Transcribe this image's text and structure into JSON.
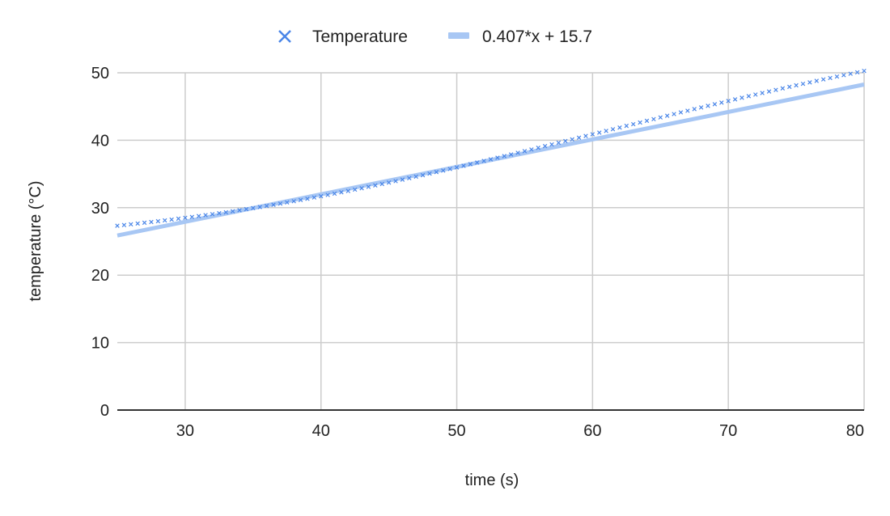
{
  "colors": {
    "marker": "#4a86e8",
    "trendline": "#a8c7f4",
    "grid": "#cccccc",
    "axis": "#333333",
    "text": "#222222"
  },
  "chart_data": {
    "type": "scatter",
    "xlabel": "time (s)",
    "ylabel": "temperature (°C)",
    "xlim": [
      25,
      80
    ],
    "ylim": [
      0,
      50
    ],
    "x_ticks": [
      30,
      40,
      50,
      60,
      70,
      80
    ],
    "y_ticks": [
      0,
      10,
      20,
      30,
      40,
      50
    ],
    "grid": true,
    "legend": {
      "position": "top",
      "entries": [
        {
          "label": "Temperature",
          "marker": "x-icon"
        },
        {
          "label": "0.407*x + 15.7",
          "marker": "line-swatch-icon"
        }
      ]
    },
    "series": [
      {
        "name": "Temperature",
        "kind": "scatter",
        "marker": "x",
        "x": [
          25.0,
          25.5,
          26.0,
          26.5,
          27.0,
          27.5,
          28.0,
          28.5,
          29.0,
          29.5,
          30.0,
          30.5,
          31.0,
          31.5,
          32.0,
          32.5,
          33.0,
          33.5,
          34.0,
          34.5,
          35.0,
          35.5,
          36.0,
          36.5,
          37.0,
          37.5,
          38.0,
          38.5,
          39.0,
          39.5,
          40.0,
          40.5,
          41.0,
          41.5,
          42.0,
          42.5,
          43.0,
          43.5,
          44.0,
          44.5,
          45.0,
          45.5,
          46.0,
          46.5,
          47.0,
          47.5,
          48.0,
          48.5,
          49.0,
          49.5,
          50.0,
          50.5,
          51.0,
          51.5,
          52.0,
          52.5,
          53.0,
          53.5,
          54.0,
          54.5,
          55.0,
          55.5,
          56.0,
          56.5,
          57.0,
          57.5,
          58.0,
          58.5,
          59.0,
          59.5,
          60.0,
          60.5,
          61.0,
          61.5,
          62.0,
          62.5,
          63.0,
          63.5,
          64.0,
          64.5,
          65.0,
          65.5,
          66.0,
          66.5,
          67.0,
          67.5,
          68.0,
          68.5,
          69.0,
          69.5,
          70.0,
          70.5,
          71.0,
          71.5,
          72.0,
          72.5,
          73.0,
          73.5,
          74.0,
          74.5,
          75.0,
          75.5,
          76.0,
          76.5,
          77.0,
          77.5,
          78.0,
          78.5,
          79.0,
          79.5,
          80.0
        ],
        "y": [
          27.32,
          27.43,
          27.54,
          27.65,
          27.77,
          27.88,
          28.0,
          28.12,
          28.24,
          28.37,
          28.5,
          28.63,
          28.76,
          28.9,
          29.04,
          29.18,
          29.32,
          29.47,
          29.62,
          29.78,
          29.94,
          30.1,
          30.26,
          30.43,
          30.6,
          30.78,
          30.96,
          31.14,
          31.32,
          31.51,
          31.7,
          31.89,
          32.08,
          32.28,
          32.48,
          32.68,
          32.88,
          33.09,
          33.3,
          33.51,
          33.72,
          33.94,
          34.16,
          34.38,
          34.6,
          34.82,
          35.05,
          35.28,
          35.51,
          35.74,
          35.97,
          36.21,
          36.45,
          36.69,
          36.93,
          37.17,
          37.41,
          37.65,
          37.89,
          38.14,
          38.38,
          38.63,
          38.88,
          39.13,
          39.38,
          39.63,
          39.88,
          40.13,
          40.38,
          40.63,
          40.88,
          41.13,
          41.38,
          41.63,
          41.88,
          42.13,
          42.38,
          42.63,
          42.88,
          43.13,
          43.38,
          43.63,
          43.88,
          44.13,
          44.37,
          44.62,
          44.86,
          45.1,
          45.34,
          45.58,
          45.82,
          46.06,
          46.3,
          46.54,
          46.77,
          47.0,
          47.23,
          47.46,
          47.69,
          47.92,
          48.14,
          48.36,
          48.58,
          48.8,
          49.02,
          49.23,
          49.44,
          49.65,
          49.86,
          50.07,
          50.28
        ]
      },
      {
        "name": "0.407*x + 15.7",
        "kind": "trendline",
        "slope": 0.407,
        "intercept": 15.7
      }
    ]
  }
}
